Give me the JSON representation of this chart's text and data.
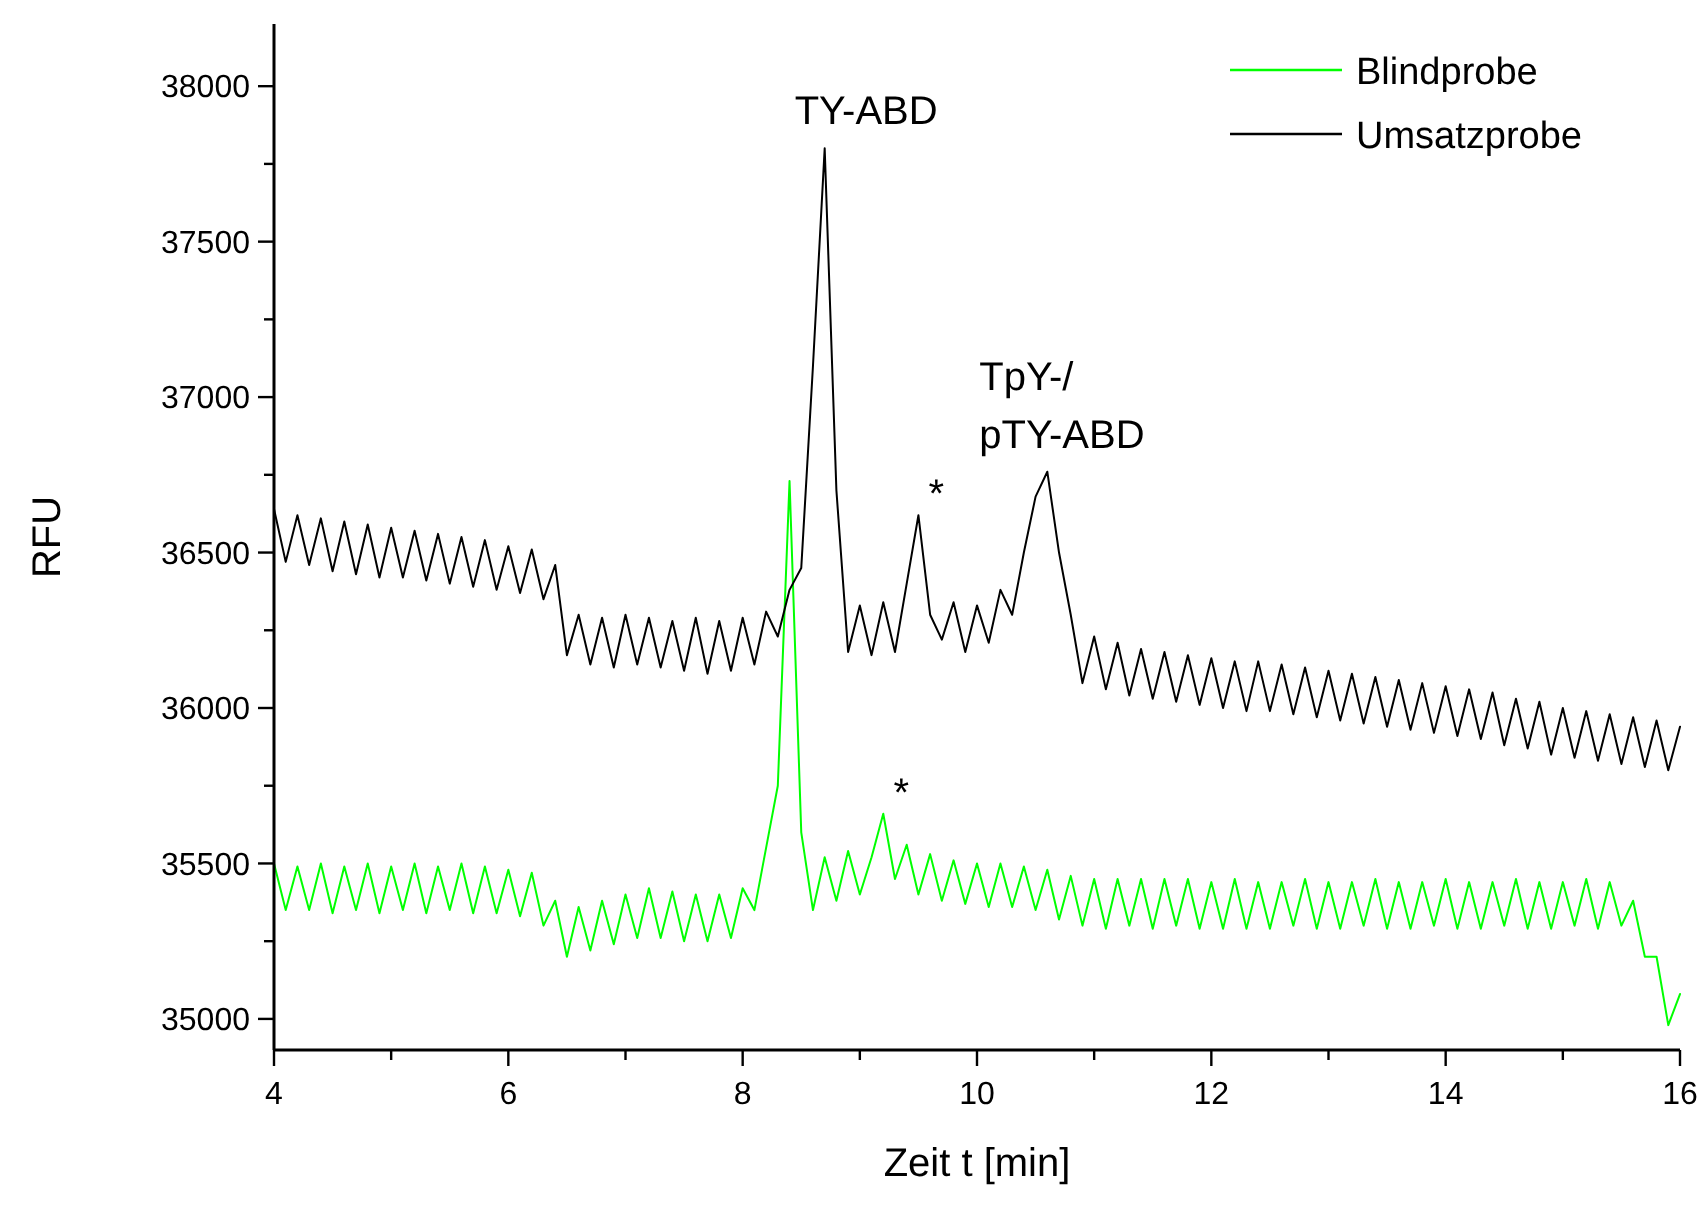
{
  "chart_data": {
    "type": "line",
    "xlabel": "Zeit t [min]",
    "ylabel": "RFU",
    "x": [
      4.0,
      4.1,
      4.2,
      4.3,
      4.4,
      4.5,
      4.6,
      4.7,
      4.8,
      4.9,
      5.0,
      5.1,
      5.2,
      5.3,
      5.4,
      5.5,
      5.6,
      5.7,
      5.8,
      5.9,
      6.0,
      6.1,
      6.2,
      6.3,
      6.4,
      6.5,
      6.6,
      6.7,
      6.8,
      6.9,
      7.0,
      7.1,
      7.2,
      7.3,
      7.4,
      7.5,
      7.6,
      7.7,
      7.8,
      7.9,
      8.0,
      8.1,
      8.2,
      8.3,
      8.4,
      8.5,
      8.6,
      8.7,
      8.8,
      8.9,
      9.0,
      9.1,
      9.2,
      9.3,
      9.4,
      9.5,
      9.6,
      9.7,
      9.8,
      9.9,
      10.0,
      10.1,
      10.2,
      10.3,
      10.4,
      10.5,
      10.6,
      10.7,
      10.8,
      10.9,
      11.0,
      11.1,
      11.2,
      11.3,
      11.4,
      11.5,
      11.6,
      11.7,
      11.8,
      11.9,
      12.0,
      12.1,
      12.2,
      12.3,
      12.4,
      12.5,
      12.6,
      12.7,
      12.8,
      12.9,
      13.0,
      13.1,
      13.2,
      13.3,
      13.4,
      13.5,
      13.6,
      13.7,
      13.8,
      13.9,
      14.0,
      14.1,
      14.2,
      14.3,
      14.4,
      14.5,
      14.6,
      14.7,
      14.8,
      14.9,
      15.0,
      15.1,
      15.2,
      15.3,
      15.4,
      15.5,
      15.6,
      15.7,
      15.8,
      15.9,
      16.0
    ],
    "series": [
      {
        "name": "Blindprobe",
        "color": "#00ff00",
        "values": [
          35500,
          35350,
          35490,
          35350,
          35500,
          35340,
          35490,
          35350,
          35500,
          35340,
          35490,
          35350,
          35500,
          35340,
          35490,
          35350,
          35500,
          35340,
          35490,
          35340,
          35480,
          35330,
          35470,
          35300,
          35380,
          35200,
          35360,
          35220,
          35380,
          35240,
          35400,
          35260,
          35420,
          35260,
          35410,
          35250,
          35400,
          35250,
          35400,
          35260,
          35420,
          35350,
          35550,
          35750,
          36730,
          35600,
          35350,
          35520,
          35380,
          35540,
          35400,
          35520,
          35660,
          35450,
          35560,
          35400,
          35530,
          35380,
          35510,
          35370,
          35500,
          35360,
          35500,
          35360,
          35490,
          35350,
          35480,
          35320,
          35460,
          35300,
          35450,
          35290,
          35450,
          35300,
          35450,
          35290,
          35450,
          35300,
          35450,
          35290,
          35440,
          35290,
          35450,
          35290,
          35440,
          35290,
          35440,
          35300,
          35450,
          35290,
          35440,
          35290,
          35440,
          35300,
          35450,
          35290,
          35440,
          35290,
          35440,
          35300,
          35450,
          35290,
          35440,
          35290,
          35440,
          35300,
          35450,
          35290,
          35440,
          35290,
          35440,
          35300,
          35450,
          35290,
          35440,
          35300,
          35380,
          35200,
          35200,
          34980,
          35080
        ]
      },
      {
        "name": "Umsatzprobe",
        "color": "#000000",
        "values": [
          36640,
          36470,
          36620,
          36460,
          36610,
          36440,
          36600,
          36430,
          36590,
          36420,
          36580,
          36420,
          36570,
          36410,
          36560,
          36400,
          36550,
          36390,
          36540,
          36380,
          36520,
          36370,
          36510,
          36350,
          36460,
          36170,
          36300,
          36140,
          36290,
          36130,
          36300,
          36140,
          36290,
          36130,
          36280,
          36120,
          36290,
          36110,
          36280,
          36120,
          36290,
          36140,
          36310,
          36230,
          36380,
          36450,
          37100,
          37800,
          36700,
          36180,
          36330,
          36170,
          36340,
          36180,
          36400,
          36620,
          36300,
          36220,
          36340,
          36180,
          36330,
          36210,
          36380,
          36300,
          36500,
          36680,
          36760,
          36500,
          36300,
          36080,
          36230,
          36060,
          36210,
          36040,
          36190,
          36030,
          36180,
          36020,
          36170,
          36010,
          36160,
          36000,
          36150,
          35990,
          36150,
          35990,
          36140,
          35980,
          36130,
          35970,
          36120,
          35960,
          36110,
          35950,
          36100,
          35940,
          36090,
          35930,
          36080,
          35920,
          36070,
          35910,
          36060,
          35900,
          36050,
          35880,
          36030,
          35870,
          36020,
          35850,
          36000,
          35840,
          35990,
          35830,
          35980,
          35820,
          35970,
          35810,
          35960,
          35800,
          35940
        ]
      }
    ],
    "xlim": [
      4,
      16
    ],
    "ylim": [
      34900,
      38200
    ],
    "xticks": [
      4,
      {
        "value": 5,
        "label": null
      },
      6,
      {
        "value": 7,
        "label": null
      },
      8,
      {
        "value": 9,
        "label": null
      },
      10,
      {
        "value": 11,
        "label": null
      },
      12,
      {
        "value": 13,
        "label": null
      },
      14,
      {
        "value": 15,
        "label": null
      },
      16
    ],
    "yticks": [
      35000,
      {
        "value": 35250,
        "label": null
      },
      35500,
      {
        "value": 35750,
        "label": null
      },
      36000,
      {
        "value": 36250,
        "label": null
      },
      36500,
      {
        "value": 36750,
        "label": null
      },
      37000,
      {
        "value": 37250,
        "label": null
      },
      37500,
      {
        "value": 37750,
        "label": null
      },
      38000
    ],
    "annotations": [
      {
        "text": "TY-ABD",
        "x": 8.7,
        "y": 37800
      },
      {
        "text": "TpY-/\npTY-ABD",
        "x": 10.6,
        "y": 36760
      },
      {
        "text": "*",
        "x": 9.5,
        "y": 36620
      },
      {
        "text": "*",
        "x": 9.2,
        "y": 35660
      }
    ],
    "legend": "top right",
    "grid": false,
    "line_style": "solid",
    "marker": "none"
  }
}
